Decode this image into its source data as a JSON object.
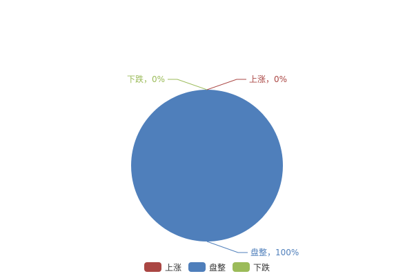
{
  "chart_data": {
    "type": "pie",
    "categories": [
      "上涨",
      "盘整",
      "下跌"
    ],
    "values": [
      0,
      100,
      0
    ],
    "percent_labels": [
      "上涨，0%",
      "盘整，100%",
      "下跌，0%"
    ],
    "colors": [
      "#aa4643",
      "#4f7fbb",
      "#9bbb59"
    ],
    "legend": {
      "placement": "bottom",
      "items": [
        "上涨",
        "盘整",
        "下跌"
      ]
    }
  }
}
